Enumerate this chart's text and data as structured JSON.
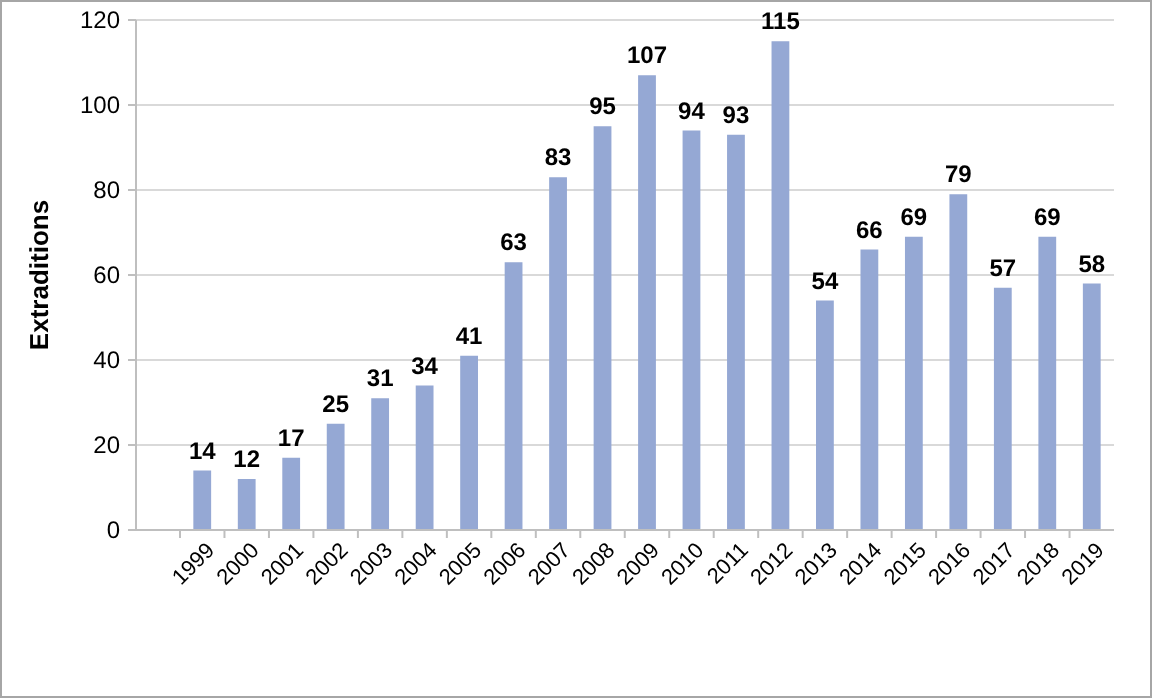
{
  "chart_data": {
    "type": "bar",
    "ylabel": "Extraditions",
    "categories": [
      "1999",
      "2000",
      "2001",
      "2002",
      "2003",
      "2004",
      "2005",
      "2006",
      "2007",
      "2008",
      "2009",
      "2010",
      "2011",
      "2012",
      "2013",
      "2014",
      "2015",
      "2016",
      "2017",
      "2018",
      "2019"
    ],
    "values": [
      14,
      12,
      17,
      25,
      31,
      34,
      41,
      63,
      83,
      95,
      107,
      94,
      93,
      115,
      54,
      66,
      69,
      79,
      57,
      69,
      58
    ],
    "color": "#95a8d4",
    "ylim": [
      0,
      120
    ],
    "yticks": [
      0,
      20,
      40,
      60,
      80,
      100,
      120
    ],
    "grid": "y",
    "data_labels": true
  }
}
